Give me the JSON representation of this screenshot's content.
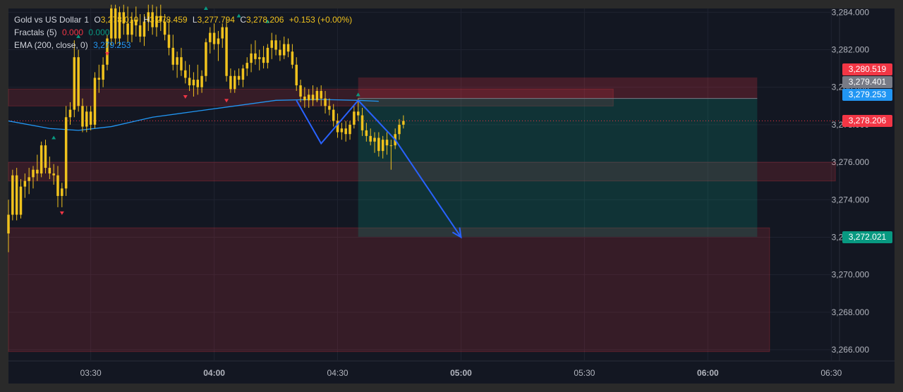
{
  "legend": {
    "symbol": "Gold vs US Dollar",
    "interval": "1",
    "o_label": "O",
    "open": "3,278.010",
    "h_label": "H",
    "high": "3,278.459",
    "l_label": "L",
    "low": "3,277.794",
    "c_label": "C",
    "close": "3,278.206",
    "change": "+0.153 (+0.00%)",
    "fractals_label": "Fractals (5)",
    "fractals_up": "0.000",
    "fractals_down": "0.000",
    "ema_label": "EMA (200, close, 0)",
    "ema_value": "3,279.253"
  },
  "price_tags": {
    "zone_top": {
      "text": "3,280.519",
      "color": "#f23645"
    },
    "grey_level": {
      "text": "3,279.401",
      "color": "#787b86"
    },
    "ema": {
      "text": "3,279.253",
      "color": "#2196f3"
    },
    "last": {
      "text": "3,278.206",
      "color": "#f23645"
    },
    "target": {
      "text": "3,272.021",
      "color": "#089981"
    }
  },
  "chart_data": {
    "type": "candlestick",
    "title": "Gold vs US Dollar",
    "interval": "1",
    "y_ticks": [
      "3,266.000",
      "3,268.000",
      "3,270.000",
      "3,272.000",
      "3,274.000",
      "3,276.000",
      "3,278.000",
      "3,280.000",
      "3,282.000",
      "3,284.000"
    ],
    "x_ticks": [
      "03:30",
      "04:00",
      "04:30",
      "05:00",
      "05:30",
      "06:00",
      "06:30"
    ],
    "ylim": [
      3265.4,
      3284.2
    ],
    "xlim": [
      "03:10",
      "06:32"
    ],
    "candles": [
      {
        "t": "03:10",
        "o": 3272.2,
        "h": 3274.0,
        "l": 3271.2,
        "c": 3273.2
      },
      {
        "t": "03:11",
        "o": 3273.2,
        "h": 3275.6,
        "l": 3272.9,
        "c": 3275.3
      },
      {
        "t": "03:12",
        "o": 3275.3,
        "h": 3275.7,
        "l": 3272.9,
        "c": 3273.2
      },
      {
        "t": "03:13",
        "o": 3273.2,
        "h": 3275.1,
        "l": 3273.0,
        "c": 3274.7
      },
      {
        "t": "03:14",
        "o": 3274.7,
        "h": 3275.4,
        "l": 3274.1,
        "c": 3275.0
      },
      {
        "t": "03:15",
        "o": 3275.0,
        "h": 3275.7,
        "l": 3274.3,
        "c": 3275.2
      },
      {
        "t": "03:16",
        "o": 3275.2,
        "h": 3275.8,
        "l": 3274.6,
        "c": 3275.6
      },
      {
        "t": "03:17",
        "o": 3275.6,
        "h": 3276.4,
        "l": 3275.0,
        "c": 3275.4
      },
      {
        "t": "03:18",
        "o": 3275.4,
        "h": 3277.1,
        "l": 3275.2,
        "c": 3276.9
      },
      {
        "t": "03:19",
        "o": 3276.9,
        "h": 3277.2,
        "l": 3275.4,
        "c": 3275.7
      },
      {
        "t": "03:20",
        "o": 3275.7,
        "h": 3276.3,
        "l": 3275.1,
        "c": 3275.4
      },
      {
        "t": "03:21",
        "o": 3275.4,
        "h": 3275.9,
        "l": 3274.8,
        "c": 3275.3
      },
      {
        "t": "03:22",
        "o": 3275.3,
        "h": 3275.8,
        "l": 3273.6,
        "c": 3274.2
      },
      {
        "t": "03:23",
        "o": 3274.2,
        "h": 3274.9,
        "l": 3273.6,
        "c": 3274.6
      },
      {
        "t": "03:24",
        "o": 3274.6,
        "h": 3279.0,
        "l": 3274.2,
        "c": 3278.4
      },
      {
        "t": "03:25",
        "o": 3278.4,
        "h": 3279.2,
        "l": 3278.0,
        "c": 3278.8
      },
      {
        "t": "03:26",
        "o": 3278.8,
        "h": 3282.5,
        "l": 3278.4,
        "c": 3281.6
      },
      {
        "t": "03:27",
        "o": 3281.6,
        "h": 3282.0,
        "l": 3278.7,
        "c": 3279.0
      },
      {
        "t": "03:28",
        "o": 3279.0,
        "h": 3279.4,
        "l": 3277.6,
        "c": 3277.9
      },
      {
        "t": "03:29",
        "o": 3277.9,
        "h": 3279.0,
        "l": 3277.6,
        "c": 3278.7
      },
      {
        "t": "03:30",
        "o": 3278.7,
        "h": 3279.0,
        "l": 3277.7,
        "c": 3278.0
      },
      {
        "t": "03:31",
        "o": 3278.0,
        "h": 3280.8,
        "l": 3277.8,
        "c": 3280.5
      },
      {
        "t": "03:32",
        "o": 3280.5,
        "h": 3281.2,
        "l": 3279.7,
        "c": 3280.4
      },
      {
        "t": "03:33",
        "o": 3280.4,
        "h": 3281.6,
        "l": 3280.0,
        "c": 3281.2
      },
      {
        "t": "03:34",
        "o": 3281.2,
        "h": 3282.8,
        "l": 3280.9,
        "c": 3282.6
      },
      {
        "t": "03:35",
        "o": 3282.6,
        "h": 3284.4,
        "l": 3282.2,
        "c": 3284.2
      },
      {
        "t": "03:36",
        "o": 3284.2,
        "h": 3284.4,
        "l": 3282.3,
        "c": 3282.6
      },
      {
        "t": "03:37",
        "o": 3282.6,
        "h": 3284.3,
        "l": 3282.2,
        "c": 3284.0
      },
      {
        "t": "03:38",
        "o": 3284.0,
        "h": 3284.4,
        "l": 3282.8,
        "c": 3283.4
      },
      {
        "t": "03:39",
        "o": 3283.4,
        "h": 3284.3,
        "l": 3282.4,
        "c": 3282.8
      },
      {
        "t": "03:40",
        "o": 3282.8,
        "h": 3284.0,
        "l": 3282.4,
        "c": 3283.6
      },
      {
        "t": "03:41",
        "o": 3283.6,
        "h": 3284.3,
        "l": 3282.7,
        "c": 3283.3
      },
      {
        "t": "03:42",
        "o": 3283.3,
        "h": 3283.9,
        "l": 3282.4,
        "c": 3282.7
      },
      {
        "t": "03:43",
        "o": 3282.7,
        "h": 3283.9,
        "l": 3282.2,
        "c": 3283.5
      },
      {
        "t": "03:44",
        "o": 3283.5,
        "h": 3284.4,
        "l": 3283.0,
        "c": 3284.0
      },
      {
        "t": "03:45",
        "o": 3284.0,
        "h": 3284.4,
        "l": 3282.8,
        "c": 3283.2
      },
      {
        "t": "03:46",
        "o": 3283.2,
        "h": 3284.3,
        "l": 3282.7,
        "c": 3283.8
      },
      {
        "t": "03:47",
        "o": 3283.8,
        "h": 3284.4,
        "l": 3283.0,
        "c": 3283.5
      },
      {
        "t": "03:48",
        "o": 3283.5,
        "h": 3283.9,
        "l": 3282.5,
        "c": 3282.8
      },
      {
        "t": "03:49",
        "o": 3282.8,
        "h": 3283.6,
        "l": 3281.7,
        "c": 3282.1
      },
      {
        "t": "03:50",
        "o": 3282.1,
        "h": 3282.8,
        "l": 3280.9,
        "c": 3281.2
      },
      {
        "t": "03:51",
        "o": 3281.2,
        "h": 3281.9,
        "l": 3280.5,
        "c": 3281.6
      },
      {
        "t": "03:52",
        "o": 3281.6,
        "h": 3282.1,
        "l": 3280.6,
        "c": 3280.9
      },
      {
        "t": "03:53",
        "o": 3280.9,
        "h": 3281.4,
        "l": 3280.2,
        "c": 3280.5
      },
      {
        "t": "03:54",
        "o": 3280.5,
        "h": 3281.2,
        "l": 3279.8,
        "c": 3280.1
      },
      {
        "t": "03:55",
        "o": 3280.1,
        "h": 3280.8,
        "l": 3279.5,
        "c": 3280.4
      },
      {
        "t": "03:56",
        "o": 3280.4,
        "h": 3281.2,
        "l": 3279.6,
        "c": 3280.0
      },
      {
        "t": "03:57",
        "o": 3280.0,
        "h": 3280.9,
        "l": 3279.7,
        "c": 3280.6
      },
      {
        "t": "03:58",
        "o": 3280.6,
        "h": 3282.6,
        "l": 3280.3,
        "c": 3282.4
      },
      {
        "t": "03:59",
        "o": 3282.4,
        "h": 3283.2,
        "l": 3281.8,
        "c": 3282.9
      },
      {
        "t": "04:00",
        "o": 3282.9,
        "h": 3283.4,
        "l": 3282.0,
        "c": 3282.3
      },
      {
        "t": "04:01",
        "o": 3282.3,
        "h": 3283.0,
        "l": 3281.4,
        "c": 3282.6
      },
      {
        "t": "04:02",
        "o": 3282.6,
        "h": 3283.4,
        "l": 3282.1,
        "c": 3283.2
      },
      {
        "t": "04:03",
        "o": 3283.2,
        "h": 3283.7,
        "l": 3280.3,
        "c": 3280.6
      },
      {
        "t": "04:04",
        "o": 3280.6,
        "h": 3281.0,
        "l": 3279.7,
        "c": 3279.9
      },
      {
        "t": "04:05",
        "o": 3279.9,
        "h": 3280.9,
        "l": 3279.7,
        "c": 3280.6
      },
      {
        "t": "04:06",
        "o": 3280.6,
        "h": 3281.0,
        "l": 3280.1,
        "c": 3280.4
      },
      {
        "t": "04:07",
        "o": 3280.4,
        "h": 3281.2,
        "l": 3280.0,
        "c": 3281.0
      },
      {
        "t": "04:08",
        "o": 3281.0,
        "h": 3281.6,
        "l": 3280.6,
        "c": 3281.3
      },
      {
        "t": "04:09",
        "o": 3281.3,
        "h": 3282.3,
        "l": 3280.8,
        "c": 3281.8
      },
      {
        "t": "04:10",
        "o": 3281.8,
        "h": 3282.5,
        "l": 3281.2,
        "c": 3281.5
      },
      {
        "t": "04:11",
        "o": 3281.5,
        "h": 3282.0,
        "l": 3280.9,
        "c": 3281.6
      },
      {
        "t": "04:12",
        "o": 3281.6,
        "h": 3282.2,
        "l": 3281.0,
        "c": 3281.3
      },
      {
        "t": "04:13",
        "o": 3281.3,
        "h": 3282.3,
        "l": 3281.0,
        "c": 3282.1
      },
      {
        "t": "04:14",
        "o": 3282.1,
        "h": 3282.9,
        "l": 3281.5,
        "c": 3282.5
      },
      {
        "t": "04:15",
        "o": 3282.5,
        "h": 3282.8,
        "l": 3281.7,
        "c": 3282.0
      },
      {
        "t": "04:16",
        "o": 3282.0,
        "h": 3282.5,
        "l": 3281.4,
        "c": 3281.7
      },
      {
        "t": "04:17",
        "o": 3281.7,
        "h": 3282.7,
        "l": 3281.5,
        "c": 3282.3
      },
      {
        "t": "04:18",
        "o": 3282.3,
        "h": 3282.6,
        "l": 3281.6,
        "c": 3281.9
      },
      {
        "t": "04:19",
        "o": 3281.9,
        "h": 3282.3,
        "l": 3281.0,
        "c": 3281.2
      },
      {
        "t": "04:20",
        "o": 3281.2,
        "h": 3281.6,
        "l": 3279.8,
        "c": 3280.1
      },
      {
        "t": "04:21",
        "o": 3280.1,
        "h": 3280.4,
        "l": 3279.2,
        "c": 3279.5
      },
      {
        "t": "04:22",
        "o": 3279.5,
        "h": 3280.0,
        "l": 3278.9,
        "c": 3279.3
      },
      {
        "t": "04:23",
        "o": 3279.3,
        "h": 3279.9,
        "l": 3278.9,
        "c": 3279.6
      },
      {
        "t": "04:24",
        "o": 3279.6,
        "h": 3280.1,
        "l": 3279.0,
        "c": 3279.3
      },
      {
        "t": "04:25",
        "o": 3279.3,
        "h": 3280.0,
        "l": 3279.2,
        "c": 3279.8
      },
      {
        "t": "04:26",
        "o": 3279.8,
        "h": 3280.1,
        "l": 3279.0,
        "c": 3279.4
      },
      {
        "t": "04:27",
        "o": 3279.4,
        "h": 3279.8,
        "l": 3278.6,
        "c": 3279.0
      },
      {
        "t": "04:28",
        "o": 3279.0,
        "h": 3279.4,
        "l": 3278.5,
        "c": 3278.8
      },
      {
        "t": "04:29",
        "o": 3278.8,
        "h": 3279.1,
        "l": 3277.9,
        "c": 3278.2
      },
      {
        "t": "04:30",
        "o": 3278.2,
        "h": 3278.6,
        "l": 3277.3,
        "c": 3277.6
      },
      {
        "t": "04:31",
        "o": 3277.6,
        "h": 3278.1,
        "l": 3277.2,
        "c": 3277.8
      },
      {
        "t": "04:32",
        "o": 3277.8,
        "h": 3278.2,
        "l": 3277.1,
        "c": 3277.5
      },
      {
        "t": "04:33",
        "o": 3277.5,
        "h": 3278.2,
        "l": 3277.2,
        "c": 3278.0
      },
      {
        "t": "04:34",
        "o": 3278.0,
        "h": 3279.0,
        "l": 3277.8,
        "c": 3278.7
      },
      {
        "t": "04:35",
        "o": 3278.7,
        "h": 3279.4,
        "l": 3278.2,
        "c": 3278.5
      },
      {
        "t": "04:36",
        "o": 3278.5,
        "h": 3278.9,
        "l": 3277.4,
        "c": 3277.7
      },
      {
        "t": "04:37",
        "o": 3277.7,
        "h": 3278.1,
        "l": 3277.1,
        "c": 3277.4
      },
      {
        "t": "04:38",
        "o": 3277.4,
        "h": 3277.8,
        "l": 3276.9,
        "c": 3277.1
      },
      {
        "t": "04:39",
        "o": 3277.1,
        "h": 3277.6,
        "l": 3276.5,
        "c": 3277.3
      },
      {
        "t": "04:40",
        "o": 3277.3,
        "h": 3277.6,
        "l": 3276.3,
        "c": 3276.6
      },
      {
        "t": "04:41",
        "o": 3276.6,
        "h": 3277.4,
        "l": 3276.2,
        "c": 3277.2
      },
      {
        "t": "04:42",
        "o": 3277.2,
        "h": 3277.6,
        "l": 3276.4,
        "c": 3276.9
      },
      {
        "t": "04:43",
        "o": 3276.9,
        "h": 3277.2,
        "l": 3275.6,
        "c": 3276.9
      },
      {
        "t": "04:44",
        "o": 3276.9,
        "h": 3277.8,
        "l": 3276.7,
        "c": 3277.5
      },
      {
        "t": "04:45",
        "o": 3277.5,
        "h": 3278.3,
        "l": 3277.2,
        "c": 3278.0
      },
      {
        "t": "04:46",
        "o": 3278.0,
        "h": 3278.5,
        "l": 3277.8,
        "c": 3278.2
      }
    ],
    "ema": {
      "name": "EMA (200, close, 0)",
      "color": "#2196f3",
      "points": [
        {
          "t": "03:10",
          "y": 3278.2
        },
        {
          "t": "03:20",
          "y": 3277.8
        },
        {
          "t": "03:27",
          "y": 3277.7
        },
        {
          "t": "03:35",
          "y": 3277.9
        },
        {
          "t": "03:45",
          "y": 3278.4
        },
        {
          "t": "03:55",
          "y": 3278.7
        },
        {
          "t": "04:05",
          "y": 3279.0
        },
        {
          "t": "04:15",
          "y": 3279.3
        },
        {
          "t": "04:25",
          "y": 3279.35
        },
        {
          "t": "04:35",
          "y": 3279.3
        },
        {
          "t": "04:40",
          "y": 3279.25
        }
      ]
    },
    "fractals_up": [
      {
        "t": "03:21",
        "y": 3277.3
      },
      {
        "t": "03:27",
        "y": 3282.7
      },
      {
        "t": "03:58",
        "y": 3284.2
      },
      {
        "t": "04:06",
        "y": 3283.8
      },
      {
        "t": "04:13",
        "y": 3283.5
      },
      {
        "t": "04:35",
        "y": 3279.6
      }
    ],
    "fractals_down": [
      {
        "t": "03:23",
        "y": 3273.3
      },
      {
        "t": "03:34",
        "y": 3281.8
      },
      {
        "t": "03:53",
        "y": 3279.5
      },
      {
        "t": "04:03",
        "y": 3279.3
      }
    ],
    "zones": [
      {
        "t1": "03:10",
        "t2": "05:37",
        "y1": 3279.0,
        "y2": 3279.9,
        "color": "#f23645"
      },
      {
        "t1": "03:10",
        "t2": "06:31",
        "y1": 3275.0,
        "y2": 3276.0,
        "color": "#f23645"
      },
      {
        "t1": "03:10",
        "t2": "06:15",
        "y1": 3265.9,
        "y2": 3272.5,
        "color": "#f23645"
      }
    ],
    "position": {
      "t1": "04:35",
      "t2": "06:12",
      "stop": 3280.519,
      "entry": 3279.401,
      "target": 3272.021
    },
    "projection": [
      {
        "t": "04:20",
        "y": 3279.3
      },
      {
        "t": "04:26",
        "y": 3277.0
      },
      {
        "t": "04:35",
        "y": 3279.3
      },
      {
        "t": "04:44",
        "y": 3277.2
      },
      {
        "t": "05:00",
        "y": 3272.0
      }
    ],
    "h_lines": [
      {
        "y": 3279.401,
        "color": "#787b86"
      },
      {
        "y": 3278.206,
        "color": "#f23645",
        "dashed": true
      }
    ]
  }
}
